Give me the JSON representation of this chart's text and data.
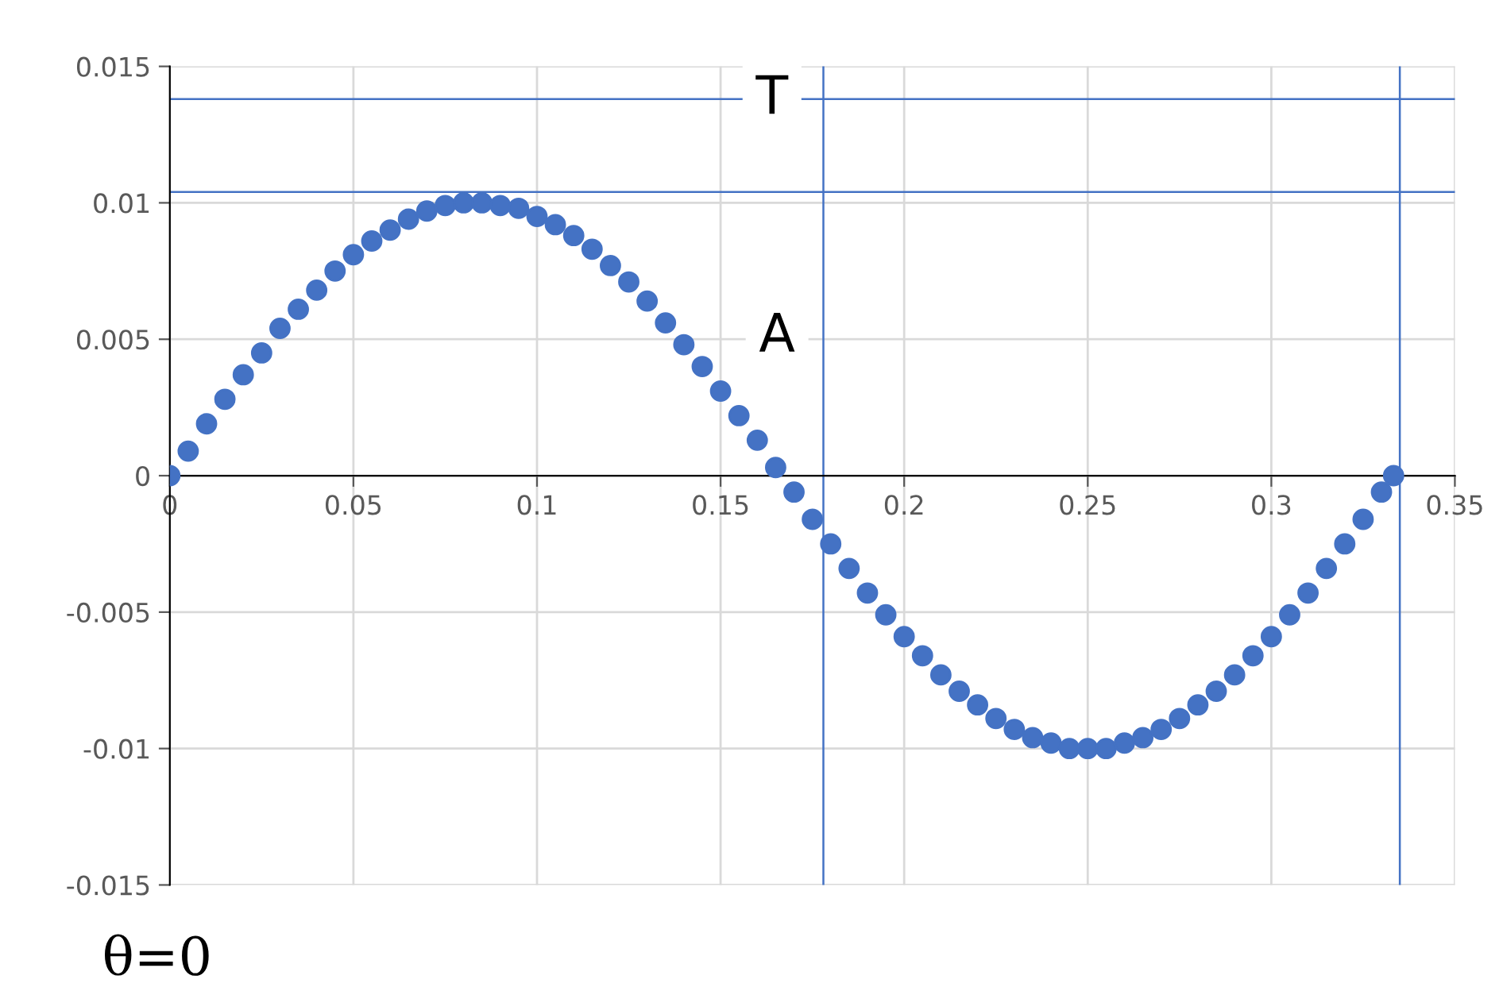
{
  "chart_data": {
    "type": "scatter",
    "x": [
      0,
      0.005,
      0.01,
      0.015,
      0.02,
      0.025,
      0.03,
      0.035,
      0.04,
      0.045,
      0.05,
      0.055,
      0.06,
      0.065,
      0.07,
      0.075,
      0.08,
      0.085,
      0.09,
      0.095,
      0.1,
      0.105,
      0.11,
      0.115,
      0.12,
      0.125,
      0.13,
      0.135,
      0.14,
      0.145,
      0.15,
      0.155,
      0.16,
      0.165,
      0.17,
      0.175,
      0.18,
      0.185,
      0.19,
      0.195,
      0.2,
      0.205,
      0.21,
      0.215,
      0.22,
      0.225,
      0.23,
      0.235,
      0.24,
      0.245,
      0.25,
      0.255,
      0.26,
      0.265,
      0.27,
      0.275,
      0.28,
      0.285,
      0.29,
      0.295,
      0.3,
      0.305,
      0.31,
      0.315,
      0.32,
      0.325,
      0.33,
      0.3333
    ],
    "series": [
      {
        "color": "#4472c4",
        "values": [
          0,
          0.0009,
          0.0019,
          0.0028,
          0.0037,
          0.0045,
          0.0054,
          0.0061,
          0.0068,
          0.0075,
          0.0081,
          0.0086,
          0.009,
          0.0094,
          0.0097,
          0.0099,
          0.01,
          0.01,
          0.0099,
          0.0098,
          0.0095,
          0.0092,
          0.0088,
          0.0083,
          0.0077,
          0.0071,
          0.0064,
          0.0056,
          0.0048,
          0.004,
          0.0031,
          0.0022,
          0.0013,
          0.0003,
          -0.0006,
          -0.0016,
          -0.0025,
          -0.0034,
          -0.0043,
          -0.0051,
          -0.0059,
          -0.0066,
          -0.0073,
          -0.0079,
          -0.0084,
          -0.0089,
          -0.0093,
          -0.0096,
          -0.0098,
          -0.01,
          -0.01,
          -0.01,
          -0.0098,
          -0.0096,
          -0.0093,
          -0.0089,
          -0.0084,
          -0.0079,
          -0.0073,
          -0.0066,
          -0.0059,
          -0.0051,
          -0.0043,
          -0.0034,
          -0.0025,
          -0.0016,
          -0.0006,
          0
        ]
      }
    ],
    "marker": "circle",
    "xlim": [
      0,
      0.35
    ],
    "xticks": [
      0,
      0.05,
      0.1,
      0.15,
      0.2,
      0.25,
      0.3,
      0.35
    ],
    "ylim": [
      -0.015,
      0.015
    ],
    "yticks": [
      -0.015,
      -0.01,
      -0.005,
      0,
      0.005,
      0.01,
      0.015
    ],
    "grid": true,
    "ref_lines": [
      {
        "axis": "y",
        "value": 0.0138,
        "color": "#4472c4"
      },
      {
        "axis": "x",
        "value": 0.335,
        "color": "#4472c4"
      },
      {
        "axis": "y",
        "value": 0.0104,
        "color": "#4472c4"
      },
      {
        "axis": "x",
        "value": 0.178,
        "color": "#4472c4"
      }
    ],
    "annotations": [
      {
        "text": "T",
        "x": 0.164,
        "y": 0.0138
      },
      "A",
      "θ=0"
    ]
  }
}
